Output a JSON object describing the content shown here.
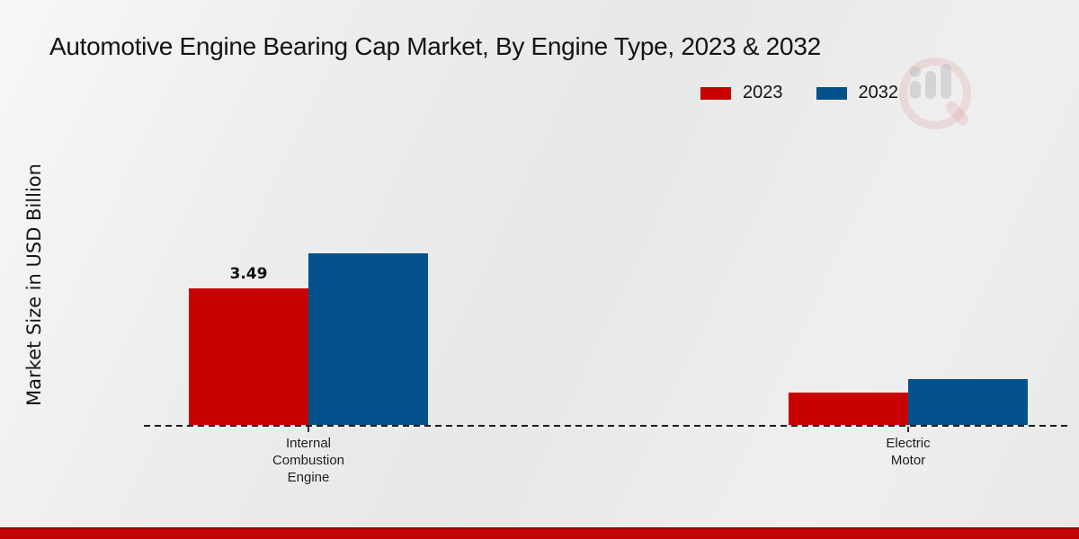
{
  "title": "Automotive Engine Bearing Cap Market, By Engine Type, 2023 & 2032",
  "y_axis_label": "Market Size in USD Billion",
  "icons": {
    "watermark": "bar-chart-magnifier-logo-icon"
  },
  "colors": {
    "series_2023": "#c80101",
    "series_2032": "#04518c",
    "footer_red": "#c20404",
    "footer_border_red": "#930808",
    "background_gray": "#ececec",
    "baseline_black": "#1c1c1c"
  },
  "chart_data": {
    "type": "bar",
    "title": "Automotive Engine Bearing Cap Market, By Engine Type, 2023 & 2032",
    "xlabel": "",
    "ylabel": "Market Size in USD Billion",
    "categories": [
      "Internal Combustion Engine",
      "Electric Motor"
    ],
    "categories_display": [
      "Internal\nCombustion\nEngine",
      "Electric\nMotor"
    ],
    "series": [
      {
        "name": "2023",
        "color": "#c80101",
        "values": [
          3.49,
          0.82
        ],
        "labels": [
          "3.49",
          ""
        ]
      },
      {
        "name": "2032",
        "color": "#04518c",
        "values": [
          4.39,
          1.18
        ],
        "labels": [
          "",
          ""
        ]
      }
    ],
    "ylim": [
      0,
      4.6
    ],
    "grid": false,
    "axis_style": "dashed-zero-baseline-only",
    "legend_position": "top-right",
    "data_label_shown": "only 2023 Internal Combustion Engine = 3.49"
  }
}
